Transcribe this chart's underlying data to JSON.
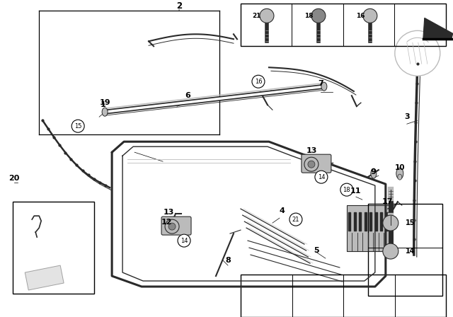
{
  "bg_color": "#ffffff",
  "fig_width": 6.4,
  "fig_height": 4.48,
  "dpi": 100,
  "gray": "#555555",
  "dgray": "#2a2a2a",
  "lgray": "#bbbbbb",
  "mgray": "#888888"
}
